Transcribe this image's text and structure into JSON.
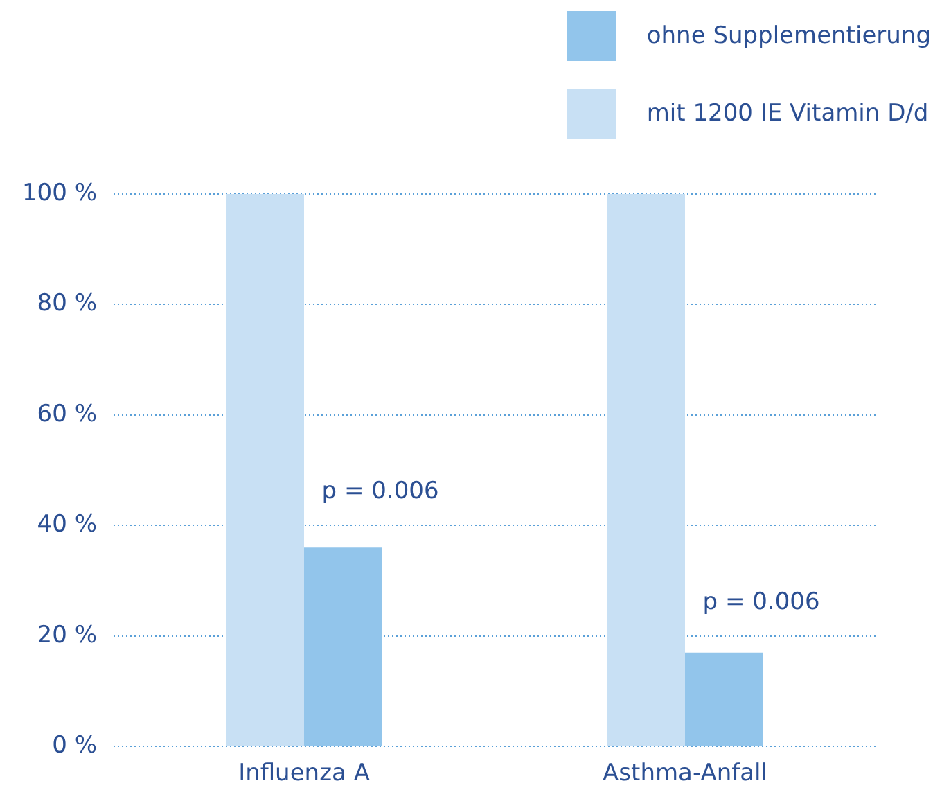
{
  "chart_data": {
    "type": "bar",
    "categories": [
      "Influenza A",
      "Asthma-Anfall"
    ],
    "series": [
      {
        "name": "mit 1200 IE Vitamin D/d",
        "color": "#c8e0f4",
        "values": [
          100,
          100
        ]
      },
      {
        "name": "ohne Supplementierung",
        "color": "#92c5eb",
        "values": [
          36,
          17
        ]
      }
    ],
    "ylim": [
      0,
      100
    ],
    "yticks": [
      {
        "value": 0,
        "label": "0 %"
      },
      {
        "value": 20,
        "label": "20 %"
      },
      {
        "value": 40,
        "label": "40 %"
      },
      {
        "value": 60,
        "label": "60 %"
      },
      {
        "value": 80,
        "label": "80 %"
      },
      {
        "value": 100,
        "label": "100 %"
      }
    ],
    "grid": "y",
    "legend": "top right",
    "annotations": [
      {
        "text": "p = 0.006",
        "x": "Influenza A",
        "y": 46
      },
      {
        "text": "p = 0.006",
        "x": "Asthma-Anfall",
        "y": 26
      }
    ]
  }
}
